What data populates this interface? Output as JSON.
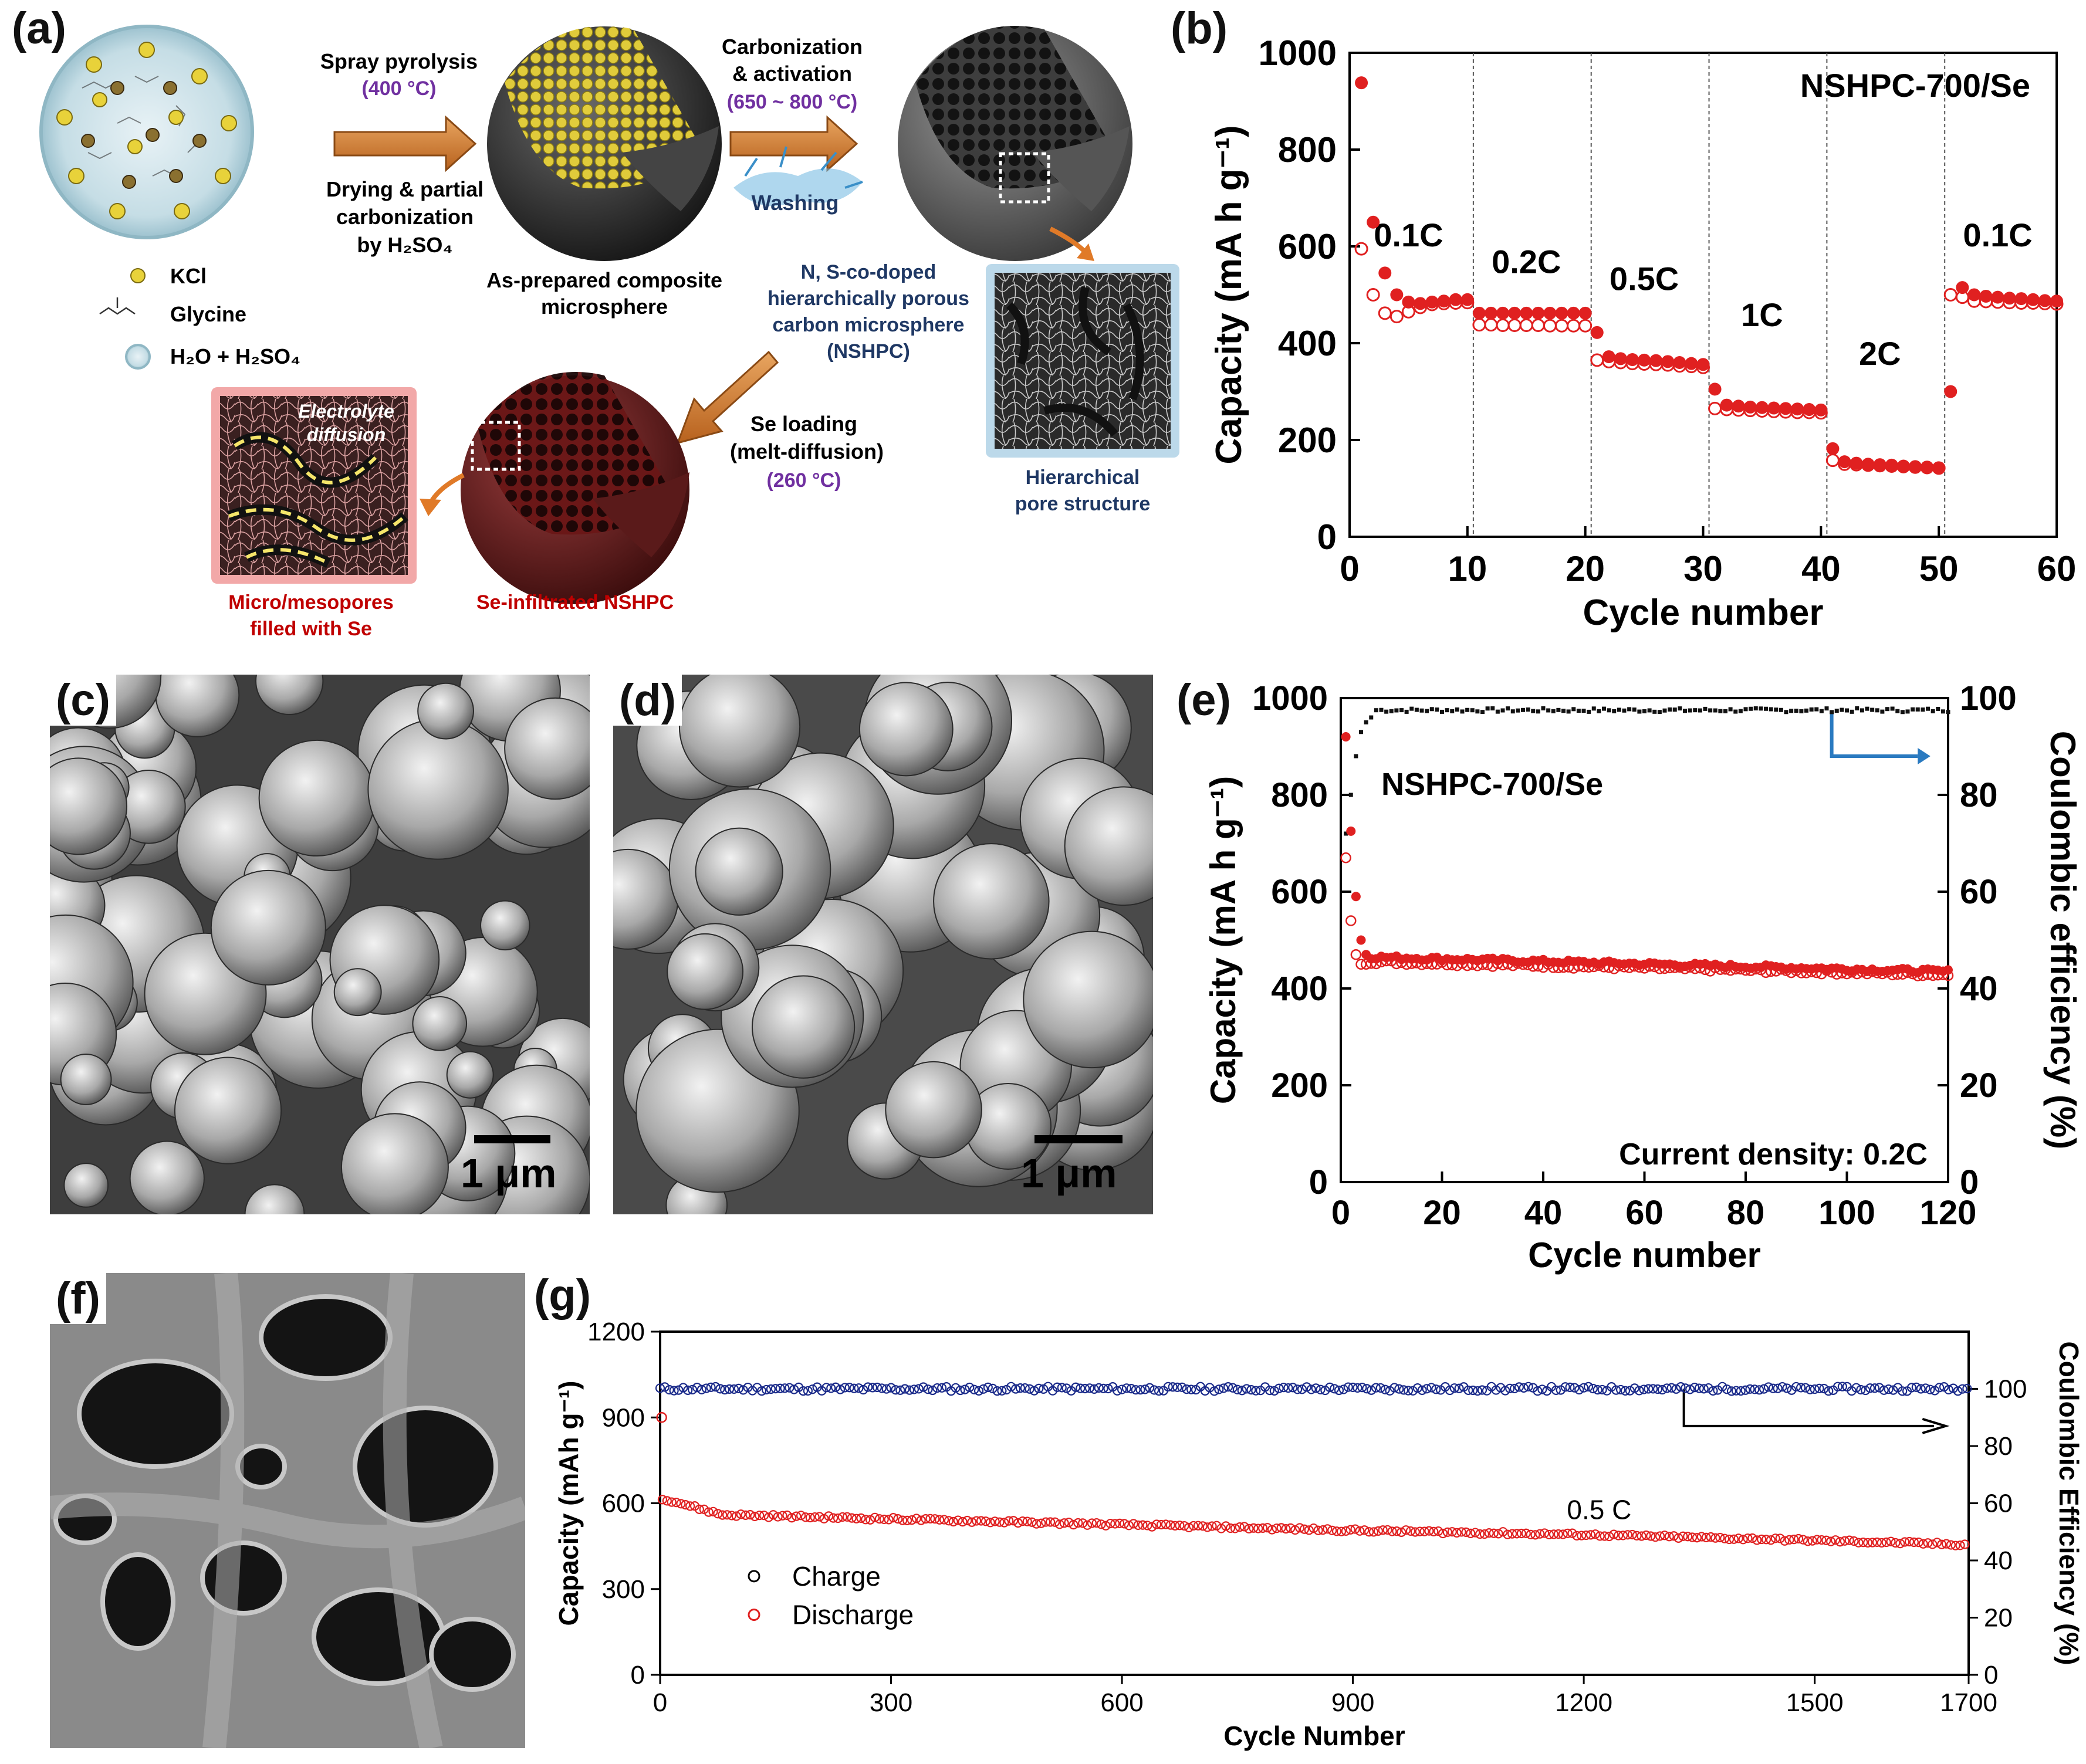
{
  "figure": {
    "panel_labels": {
      "a": "(a)",
      "b": "(b)",
      "c": "(c)",
      "d": "(d)",
      "e": "(e)",
      "f": "(f)",
      "g": "(g)"
    }
  },
  "schematic": {
    "step1": {
      "label": "Spray pyrolysis",
      "temp": "(400 °C)",
      "sub1": "Drying & partial",
      "sub2": "carbonization",
      "sub3": "by H₂SO₄"
    },
    "step2": {
      "label1": "Carbonization",
      "label2": "& activation",
      "temp": "(650 ~ 800 °C)",
      "washing": "Washing"
    },
    "step3": {
      "label1": "Se loading",
      "label2": "(melt-diffusion)",
      "temp": "(260 °C)"
    },
    "legend": {
      "kcl": "KCl",
      "glycine": "Glycine",
      "solvent": "H₂O + H₂SO₄"
    },
    "composite_caption": [
      "As-prepared composite",
      "microsphere"
    ],
    "nshpc_caption": [
      "N, S-co-doped",
      "hierarchically porous",
      "carbon microsphere",
      "(NSHPC)"
    ],
    "pore_caption": [
      "Hierarchical",
      "pore structure"
    ],
    "electrolyte_label": [
      "Electrolyte",
      "diffusion"
    ],
    "se_caption": "Se-infiltrated NSHPC",
    "pores_caption": [
      "Micro/mesopores",
      "filled with Se"
    ],
    "colors": {
      "purple": "#7030a0",
      "navy": "#1f3864",
      "red": "#c00000"
    }
  },
  "sem": {
    "c": {
      "scale_text": "1 μm"
    },
    "d": {
      "scale_text": "1 μm"
    }
  },
  "chart_data": [
    {
      "id": "b",
      "type": "scatter",
      "title": "",
      "annotation": "NSHPC-700/Se",
      "xlabel": "Cycle number",
      "ylabel": "Capacity (mA h g⁻¹)",
      "xlim": [
        0,
        60
      ],
      "ylim": [
        0,
        1000
      ],
      "xticks": [
        0,
        10,
        20,
        30,
        40,
        50,
        60
      ],
      "yticks": [
        0,
        200,
        400,
        600,
        800,
        1000
      ],
      "rate_labels": [
        {
          "text": "0.1C",
          "x": 5,
          "y": 600
        },
        {
          "text": "0.2C",
          "x": 15,
          "y": 545
        },
        {
          "text": "0.5C",
          "x": 25,
          "y": 510
        },
        {
          "text": "1C",
          "x": 35,
          "y": 435
        },
        {
          "text": "2C",
          "x": 45,
          "y": 355
        },
        {
          "text": "0.1C",
          "x": 55,
          "y": 600
        }
      ],
      "divider_x": [
        10.5,
        20.5,
        30.5,
        40.5,
        50.5
      ],
      "series": [
        {
          "role": "discharge",
          "x": [
            1,
            2,
            3,
            4,
            5,
            6,
            7,
            8,
            9,
            10,
            11,
            12,
            13,
            14,
            15,
            16,
            17,
            18,
            19,
            20,
            21,
            22,
            23,
            24,
            25,
            26,
            27,
            28,
            29,
            30,
            31,
            32,
            33,
            34,
            35,
            36,
            37,
            38,
            39,
            40,
            41,
            42,
            43,
            44,
            45,
            46,
            47,
            48,
            49,
            50,
            51,
            52,
            53,
            54,
            55,
            56,
            57,
            58,
            59,
            60
          ],
          "y": [
            938,
            650,
            545,
            500,
            485,
            482,
            485,
            487,
            490,
            490,
            462,
            462,
            462,
            462,
            462,
            462,
            462,
            462,
            462,
            462,
            422,
            372,
            368,
            366,
            365,
            364,
            362,
            360,
            358,
            356,
            305,
            272,
            270,
            268,
            267,
            266,
            265,
            264,
            263,
            262,
            182,
            155,
            152,
            150,
            149,
            148,
            146,
            145,
            144,
            142,
            300,
            515,
            500,
            497,
            495,
            493,
            492,
            490,
            488,
            487
          ]
        },
        {
          "role": "charge",
          "x": [
            1,
            2,
            3,
            4,
            5,
            6,
            7,
            8,
            9,
            10,
            11,
            12,
            13,
            14,
            15,
            16,
            17,
            18,
            19,
            20,
            21,
            22,
            23,
            24,
            25,
            26,
            27,
            28,
            29,
            30,
            31,
            32,
            33,
            34,
            35,
            36,
            37,
            38,
            39,
            40,
            41,
            42,
            43,
            44,
            45,
            46,
            47,
            48,
            49,
            50,
            51,
            52,
            53,
            54,
            55,
            56,
            57,
            58,
            59,
            60
          ],
          "y": [
            595,
            500,
            462,
            455,
            465,
            474,
            480,
            482,
            483,
            484,
            438,
            438,
            437,
            437,
            437,
            437,
            436,
            436,
            436,
            436,
            365,
            362,
            360,
            358,
            357,
            356,
            355,
            353,
            352,
            350,
            265,
            263,
            262,
            261,
            260,
            259,
            258,
            257,
            257,
            256,
            158,
            150,
            149,
            148,
            147,
            146,
            145,
            144,
            143,
            142,
            500,
            495,
            487,
            486,
            485,
            484,
            483,
            483,
            482,
            481
          ]
        }
      ]
    },
    {
      "id": "e",
      "type": "scatter",
      "title": "",
      "annotation": "NSHPC-700/Se",
      "note": "Current density: 0.2C",
      "xlabel": "Cycle number",
      "ylabel": "Capacity (mA h g⁻¹)",
      "y2label": "Coulombic efficiency (%)",
      "xlim": [
        0,
        120
      ],
      "ylim": [
        0,
        1000
      ],
      "y2lim": [
        0,
        100
      ],
      "xticks": [
        0,
        20,
        40,
        60,
        80,
        100,
        120
      ],
      "yticks": [
        0,
        200,
        400,
        600,
        800,
        1000
      ],
      "y2ticks": [
        0,
        20,
        40,
        60,
        80,
        100
      ],
      "discharge_start": [
        920,
        725,
        590,
        500,
        470
      ],
      "discharge_trend": {
        "from_cycle": 6,
        "to_cycle": 120,
        "start": 465,
        "end": 435
      },
      "charge_start": [
        670,
        540,
        470,
        450,
        450
      ],
      "charge_trend": {
        "from_cycle": 6,
        "to_cycle": 120,
        "start": 455,
        "end": 428
      },
      "ce_start": [
        72,
        80,
        88,
        93,
        95,
        96
      ],
      "ce_plateau": 97.5
    },
    {
      "id": "g",
      "type": "scatter",
      "title": "",
      "annotation": "0.5 C",
      "xlabel": "Cycle Number",
      "ylabel": "Capacity (mAh g⁻¹)",
      "y2label": "Coulombic Efficiency (%)",
      "xlim": [
        0,
        1700
      ],
      "ylim": [
        0,
        1200
      ],
      "y2lim": [
        0,
        120
      ],
      "xticks": [
        0,
        300,
        600,
        900,
        1200,
        1500,
        1700
      ],
      "yticks": [
        0,
        300,
        600,
        900,
        1200
      ],
      "y2ticks": [
        0,
        20,
        40,
        60,
        80,
        100
      ],
      "legend": [
        "Charge",
        "Discharge"
      ],
      "first_discharge": 900,
      "discharge_trend": [
        [
          0,
          620
        ],
        [
          80,
          560
        ],
        [
          300,
          545
        ],
        [
          600,
          525
        ],
        [
          900,
          505
        ],
        [
          1200,
          490
        ],
        [
          1500,
          470
        ],
        [
          1700,
          455
        ]
      ],
      "ce_plateau": 100
    }
  ],
  "photo_f": {}
}
